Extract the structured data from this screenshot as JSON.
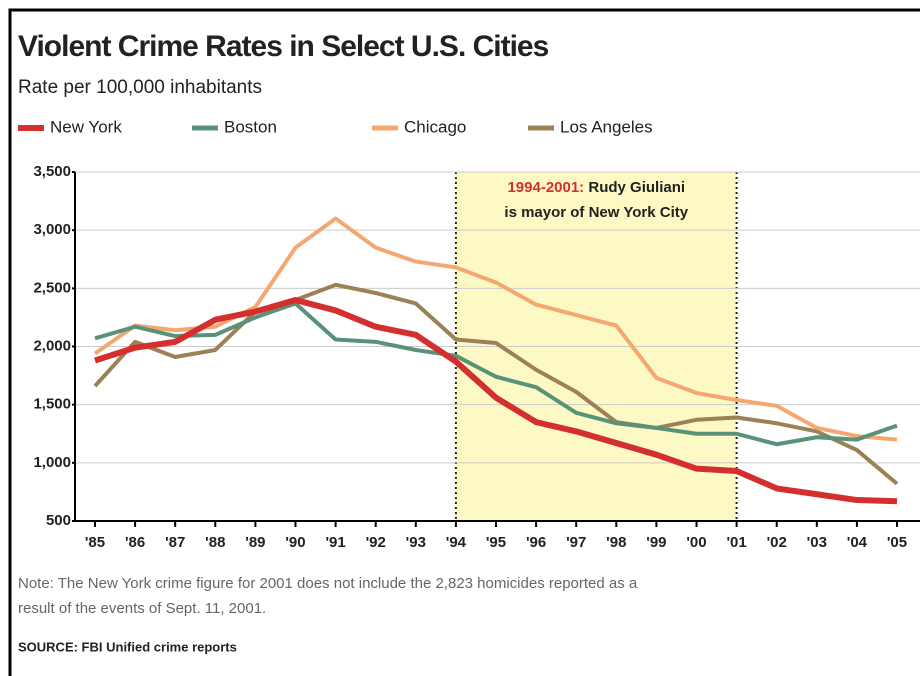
{
  "chart_data": {
    "type": "line",
    "title": "Violent Crime Rates in Select U.S. Cities",
    "subtitle": "Rate per 100,000 inhabitants",
    "categories": [
      "'85",
      "'86",
      "'87",
      "'88",
      "'89",
      "'90",
      "'91",
      "'92",
      "'93",
      "'94",
      "'95",
      "'96",
      "'97",
      "'98",
      "'99",
      "'00",
      "'01",
      "'02",
      "'03",
      "'04",
      "'05"
    ],
    "series": [
      {
        "name": "New York",
        "color": "#d32f2f",
        "values": [
          1880,
          1990,
          2040,
          2230,
          2300,
          2400,
          2310,
          2170,
          2100,
          1870,
          1560,
          1350,
          1270,
          1170,
          1070,
          950,
          930,
          780,
          730,
          680,
          670
        ]
      },
      {
        "name": "Boston",
        "color": "#5a9277",
        "values": [
          2070,
          2170,
          2090,
          2100,
          2250,
          2370,
          2060,
          2040,
          1970,
          1920,
          1740,
          1650,
          1430,
          1340,
          1300,
          1250,
          1250,
          1160,
          1220,
          1200,
          1320
        ]
      },
      {
        "name": "Chicago",
        "color": "#f4a871",
        "values": [
          1940,
          2180,
          2140,
          2170,
          2340,
          2850,
          3100,
          2850,
          2730,
          2680,
          2550,
          2360,
          2270,
          2180,
          1730,
          1600,
          1540,
          1490,
          1300,
          1230,
          1200
        ]
      },
      {
        "name": "Los Angeles",
        "color": "#9b8155",
        "values": [
          1660,
          2040,
          1910,
          1970,
          2300,
          2400,
          2530,
          2460,
          2370,
          2060,
          2030,
          1800,
          1610,
          1350,
          1300,
          1370,
          1390,
          1340,
          1270,
          1110,
          820
        ]
      }
    ],
    "ylim": [
      500,
      3500
    ],
    "yticks": [
      500,
      {
        "value": 1000,
        "label": "1,000"
      },
      {
        "value": 1500,
        "label": "1,500"
      },
      {
        "value": 2000,
        "label": "2,000"
      },
      {
        "value": 2500,
        "label": "2,500"
      },
      {
        "value": 3000,
        "label": "3,000"
      },
      {
        "value": 3500,
        "label": "3,500"
      }
    ],
    "grid": true,
    "highlight": {
      "from": "'94",
      "to": "'01",
      "color": "#fdf9c4"
    },
    "annotation": {
      "highlight_text": "1994-2001:",
      "text": [
        "Rudy Giuliani",
        "is mayor of New York City"
      ]
    },
    "note": [
      "Note: The New York crime figure for 2001 does not include the 2,823 homicides reported as a",
      "result of the events of Sept. 11, 2001."
    ],
    "source": "SOURCE: FBI Unified crime reports"
  }
}
